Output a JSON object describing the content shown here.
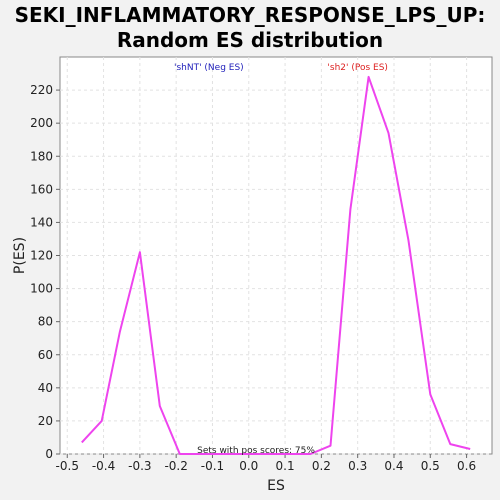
{
  "chart_data": {
    "type": "line",
    "title_line1": "SEKI_INFLAMMATORY_RESPONSE_LPS_UP:",
    "title_line2": "Random ES distribution",
    "xlabel": "ES",
    "ylabel": "P(ES)",
    "xlim": [
      -0.52,
      0.67
    ],
    "ylim": [
      0,
      240
    ],
    "x_ticks": [
      "-0.5",
      "-0.4",
      "-0.3",
      "-0.2",
      "-0.1",
      "0.0",
      "0.1",
      "0.2",
      "0.3",
      "0.4",
      "0.5",
      "0.6"
    ],
    "x_tick_values": [
      -0.5,
      -0.4,
      -0.3,
      -0.2,
      -0.1,
      0.0,
      0.1,
      0.2,
      0.3,
      0.4,
      0.5,
      0.6
    ],
    "y_ticks": [
      "0",
      "20",
      "40",
      "60",
      "80",
      "100",
      "120",
      "140",
      "160",
      "180",
      "200",
      "220"
    ],
    "y_tick_values": [
      0,
      20,
      40,
      60,
      80,
      100,
      120,
      140,
      160,
      180,
      200,
      220
    ],
    "grid": true,
    "series": [
      {
        "color": "#ee44ee",
        "x": [
          -0.46,
          -0.405,
          -0.355,
          -0.3,
          -0.245,
          -0.19,
          0.17,
          0.225,
          0.28,
          0.33,
          0.385,
          0.44,
          0.5,
          0.555,
          0.61
        ],
        "y": [
          7,
          20,
          74,
          122,
          29,
          0,
          0,
          5,
          148,
          228,
          194,
          129,
          36,
          6,
          3
        ]
      }
    ],
    "annotations": {
      "neg_label": "'shNT' (Neg ES)",
      "neg_color": "#2222bb",
      "neg_x": -0.11,
      "pos_label": "'sh2' (Pos ES)",
      "pos_color": "#dd2222",
      "pos_x": 0.3,
      "sets_label": "Sets with pos scores: 75%",
      "sets_x": 0.02
    }
  }
}
